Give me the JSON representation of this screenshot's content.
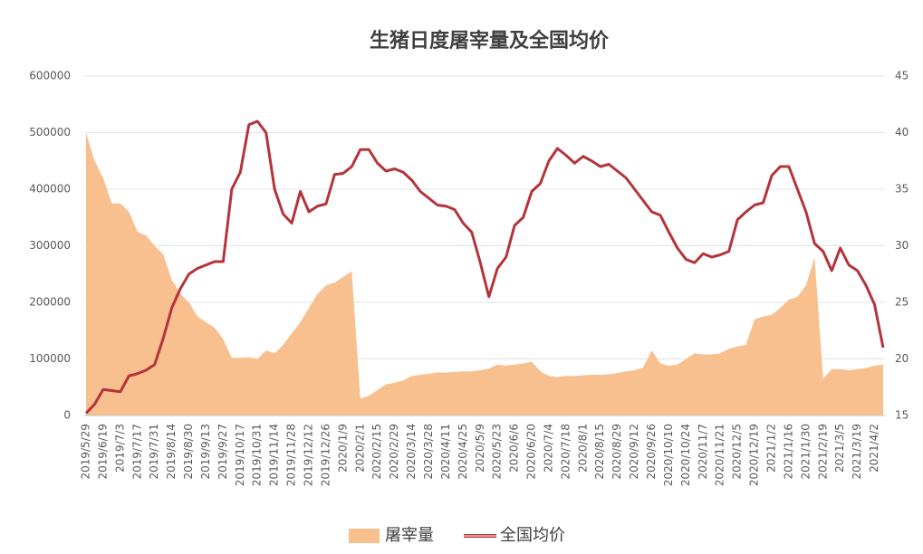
{
  "chart_data": {
    "type": "combo",
    "title": "生猪日度屠宰量及全国均价",
    "categories": [
      "2019/5/29",
      null,
      "2019/6/19",
      null,
      "2019/7/3",
      null,
      "2019/7/17",
      null,
      "2019/7/31",
      null,
      "2019/8/14",
      null,
      "2019/8/30",
      null,
      "2019/9/13",
      null,
      "2019/9/27",
      null,
      "2019/10/17",
      null,
      "2019/10/31",
      null,
      "2019/11/14",
      null,
      "2019/11/28",
      null,
      "2019/12/12",
      null,
      "2019/12/26",
      null,
      "2020/1/9",
      null,
      "2020/2/1",
      null,
      "2020/2/15",
      null,
      "2020/2/29",
      null,
      "2020/3/14",
      null,
      "2020/3/28",
      null,
      "2020/4/11",
      null,
      "2020/4/25",
      null,
      "2020/5/9",
      null,
      "2020/5/23",
      null,
      "2020/6/6",
      null,
      "2020/6/20",
      null,
      "2020/7/4",
      null,
      "2020/7/18",
      null,
      "2020/8/1",
      null,
      "2020/8/15",
      null,
      "2020/8/29",
      null,
      "2020/9/12",
      null,
      "2020/9/26",
      null,
      "2020/10/10",
      null,
      "2020/10/24",
      null,
      "2020/11/7",
      null,
      "2020/11/21",
      null,
      "2020/12/5",
      null,
      "2020/12/19",
      null,
      "2021/1/2",
      null,
      "2021/1/16",
      null,
      "2021/1/30",
      null,
      "2021/2/19",
      null,
      "2021/3/5",
      null,
      "2021/3/19",
      null,
      "2021/4/2",
      null
    ],
    "series": [
      {
        "name": "屠宰量",
        "type": "area",
        "color": "#f8c08f",
        "values": [
          500000,
          450000,
          420000,
          375000,
          375000,
          360000,
          325000,
          318000,
          300000,
          285000,
          240000,
          215000,
          200000,
          175000,
          165000,
          155000,
          135000,
          102000,
          102000,
          103000,
          100000,
          115000,
          110000,
          125000,
          145000,
          165000,
          190000,
          215000,
          230000,
          235000,
          245000,
          255000,
          30000,
          35000,
          45000,
          55000,
          58000,
          62000,
          70000,
          72000,
          74000,
          76000,
          76000,
          77000,
          78000,
          78000,
          80000,
          83000,
          90000,
          88000,
          90000,
          92000,
          95000,
          78000,
          70000,
          68000,
          70000,
          70000,
          71000,
          72000,
          72000,
          73000,
          75000,
          78000,
          80000,
          85000,
          115000,
          92000,
          88000,
          90000,
          100000,
          110000,
          108000,
          108000,
          110000,
          118000,
          122000,
          125000,
          170000,
          175000,
          178000,
          190000,
          205000,
          210000,
          230000,
          280000,
          65000,
          82000,
          82000,
          80000,
          82000,
          84000,
          88000,
          90000
        ]
      },
      {
        "name": "全国均价",
        "type": "line",
        "axis": "y2",
        "color": "#b5333a",
        "values": [
          15.2,
          16.0,
          17.3,
          17.2,
          17.1,
          18.5,
          18.7,
          19.0,
          19.5,
          21.8,
          24.5,
          26.2,
          27.5,
          28.0,
          28.3,
          28.6,
          28.6,
          35.0,
          36.5,
          40.7,
          41.0,
          40.0,
          35.0,
          32.8,
          32.0,
          34.8,
          33.0,
          33.5,
          33.7,
          36.3,
          36.4,
          37.0,
          38.5,
          38.5,
          37.3,
          36.6,
          36.8,
          36.5,
          35.8,
          34.8,
          34.2,
          33.6,
          33.5,
          33.2,
          32.0,
          31.2,
          28.5,
          25.5,
          28.0,
          29.0,
          31.8,
          32.5,
          34.8,
          35.5,
          37.5,
          38.6,
          38.0,
          37.3,
          37.9,
          37.5,
          37.0,
          37.2,
          36.6,
          36.0,
          35.0,
          34.0,
          33.0,
          32.7,
          31.2,
          29.8,
          28.8,
          28.5,
          29.3,
          29.0,
          29.2,
          29.5,
          32.3,
          33.0,
          33.6,
          33.8,
          36.2,
          37.0,
          37.0,
          35.0,
          33.0,
          30.2,
          29.5,
          27.8,
          29.8,
          28.3,
          27.8,
          26.5,
          24.8,
          21.0
        ]
      }
    ],
    "ylim": [
      0,
      600000
    ],
    "yticks": [
      0,
      100000,
      200000,
      300000,
      400000,
      500000,
      600000
    ],
    "y2lim": [
      15,
      45
    ],
    "y2ticks": [
      15,
      20,
      25,
      30,
      35,
      40,
      45
    ],
    "grid": true,
    "legend": "bottom"
  }
}
